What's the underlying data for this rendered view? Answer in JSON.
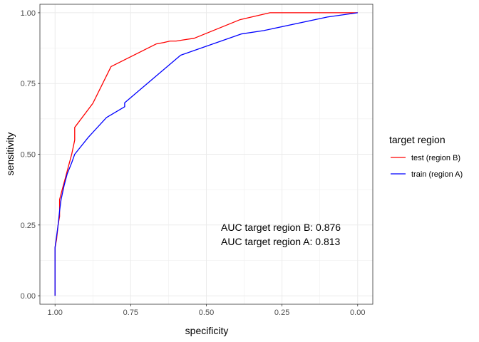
{
  "chart_data": {
    "type": "line",
    "title": "",
    "xlabel": "specificity",
    "ylabel": "sensitivity",
    "xlim": [
      1.05,
      -0.05
    ],
    "ylim": [
      -0.03,
      1.03
    ],
    "x_reversed": true,
    "grid": true,
    "x_ticks": [
      {
        "value": 1.0,
        "label": "1.00"
      },
      {
        "value": 0.75,
        "label": "0.75"
      },
      {
        "value": 0.5,
        "label": "0.50"
      },
      {
        "value": 0.25,
        "label": "0.25"
      },
      {
        "value": 0.0,
        "label": "0.00"
      }
    ],
    "y_ticks": [
      {
        "value": 0.0,
        "label": "0.00"
      },
      {
        "value": 0.25,
        "label": "0.25"
      },
      {
        "value": 0.5,
        "label": "0.50"
      },
      {
        "value": 0.75,
        "label": "0.75"
      },
      {
        "value": 1.0,
        "label": "1.00"
      }
    ],
    "legend": {
      "title": "target region",
      "position": "right"
    },
    "series": [
      {
        "name": "test (region B)",
        "color": "#FF0000",
        "points": [
          [
            1.0,
            0.0
          ],
          [
            1.0,
            0.17
          ],
          [
            0.995,
            0.2
          ],
          [
            0.99,
            0.25
          ],
          [
            0.985,
            0.28
          ],
          [
            0.985,
            0.34
          ],
          [
            0.975,
            0.38
          ],
          [
            0.965,
            0.42
          ],
          [
            0.955,
            0.46
          ],
          [
            0.945,
            0.5
          ],
          [
            0.94,
            0.525
          ],
          [
            0.935,
            0.55
          ],
          [
            0.935,
            0.57
          ],
          [
            0.935,
            0.595
          ],
          [
            0.875,
            0.68
          ],
          [
            0.815,
            0.81
          ],
          [
            0.665,
            0.89
          ],
          [
            0.64,
            0.895
          ],
          [
            0.62,
            0.9
          ],
          [
            0.6,
            0.9
          ],
          [
            0.54,
            0.91
          ],
          [
            0.39,
            0.975
          ],
          [
            0.29,
            1.0
          ],
          [
            0.0,
            1.0
          ]
        ]
      },
      {
        "name": "train (region A)",
        "color": "#0000FF",
        "points": [
          [
            1.0,
            0.0
          ],
          [
            1.0,
            0.17
          ],
          [
            0.99,
            0.25
          ],
          [
            0.985,
            0.3
          ],
          [
            0.98,
            0.34
          ],
          [
            0.97,
            0.39
          ],
          [
            0.96,
            0.43
          ],
          [
            0.945,
            0.47
          ],
          [
            0.935,
            0.5
          ],
          [
            0.89,
            0.56
          ],
          [
            0.83,
            0.63
          ],
          [
            0.77,
            0.668
          ],
          [
            0.77,
            0.682
          ],
          [
            0.585,
            0.85
          ],
          [
            0.385,
            0.925
          ],
          [
            0.31,
            0.937
          ],
          [
            0.1,
            0.985
          ],
          [
            0.0,
            1.0
          ]
        ]
      }
    ],
    "annotations": [
      "AUC target region B: 0.876",
      "AUC target region A: 0.813"
    ]
  }
}
